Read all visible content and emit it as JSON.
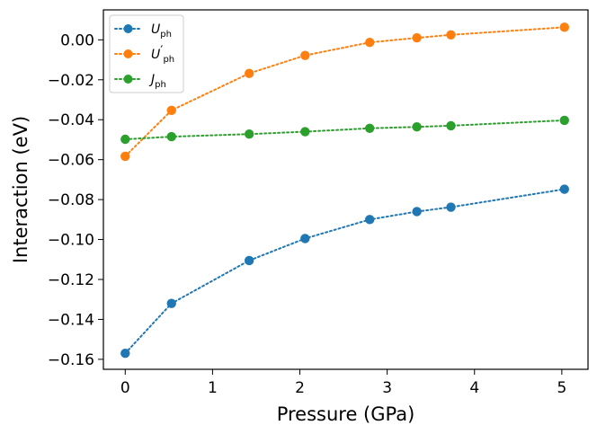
{
  "chart_data": {
    "type": "line",
    "title": "",
    "xlabel": "Pressure (GPa)",
    "ylabel": "Interaction (eV)",
    "xlim": [
      -0.25,
      5.3
    ],
    "ylim": [
      -0.165,
      0.015
    ],
    "x_ticks": [
      0,
      1,
      2,
      3,
      4,
      5
    ],
    "x_tick_labels": [
      "0",
      "1",
      "2",
      "3",
      "4",
      "5"
    ],
    "y_ticks": [
      -0.16,
      -0.14,
      -0.12,
      -0.1,
      -0.08,
      -0.06,
      -0.04,
      -0.02,
      0.0
    ],
    "y_tick_labels": [
      "−0.16",
      "−0.14",
      "−0.12",
      "−0.10",
      "−0.08",
      "−0.06",
      "−0.04",
      "−0.02",
      "0.00"
    ],
    "grid": false,
    "legend_position": "top-left",
    "line_style": "dotted",
    "marker": "circle",
    "x": [
      0,
      0.53,
      1.42,
      2.06,
      2.8,
      3.34,
      3.73,
      5.03
    ],
    "series": [
      {
        "name_main": "U",
        "name_prime": "",
        "name_sub": "ph",
        "color": "#1f77b4",
        "values": [
          -0.157,
          -0.132,
          -0.1105,
          -0.0995,
          -0.09,
          -0.086,
          -0.0838,
          -0.0748
        ]
      },
      {
        "name_main": "U",
        "name_prime": "′",
        "name_sub": "ph",
        "color": "#ff7f0e",
        "values": [
          -0.0583,
          -0.0353,
          -0.0168,
          -0.0078,
          -0.0013,
          0.001,
          0.0025,
          0.0063
        ]
      },
      {
        "name_main": "J",
        "name_prime": "",
        "name_sub": "ph",
        "color": "#2ca02c",
        "values": [
          -0.0498,
          -0.0485,
          -0.0472,
          -0.046,
          -0.0443,
          -0.0436,
          -0.043,
          -0.0403
        ]
      }
    ]
  }
}
